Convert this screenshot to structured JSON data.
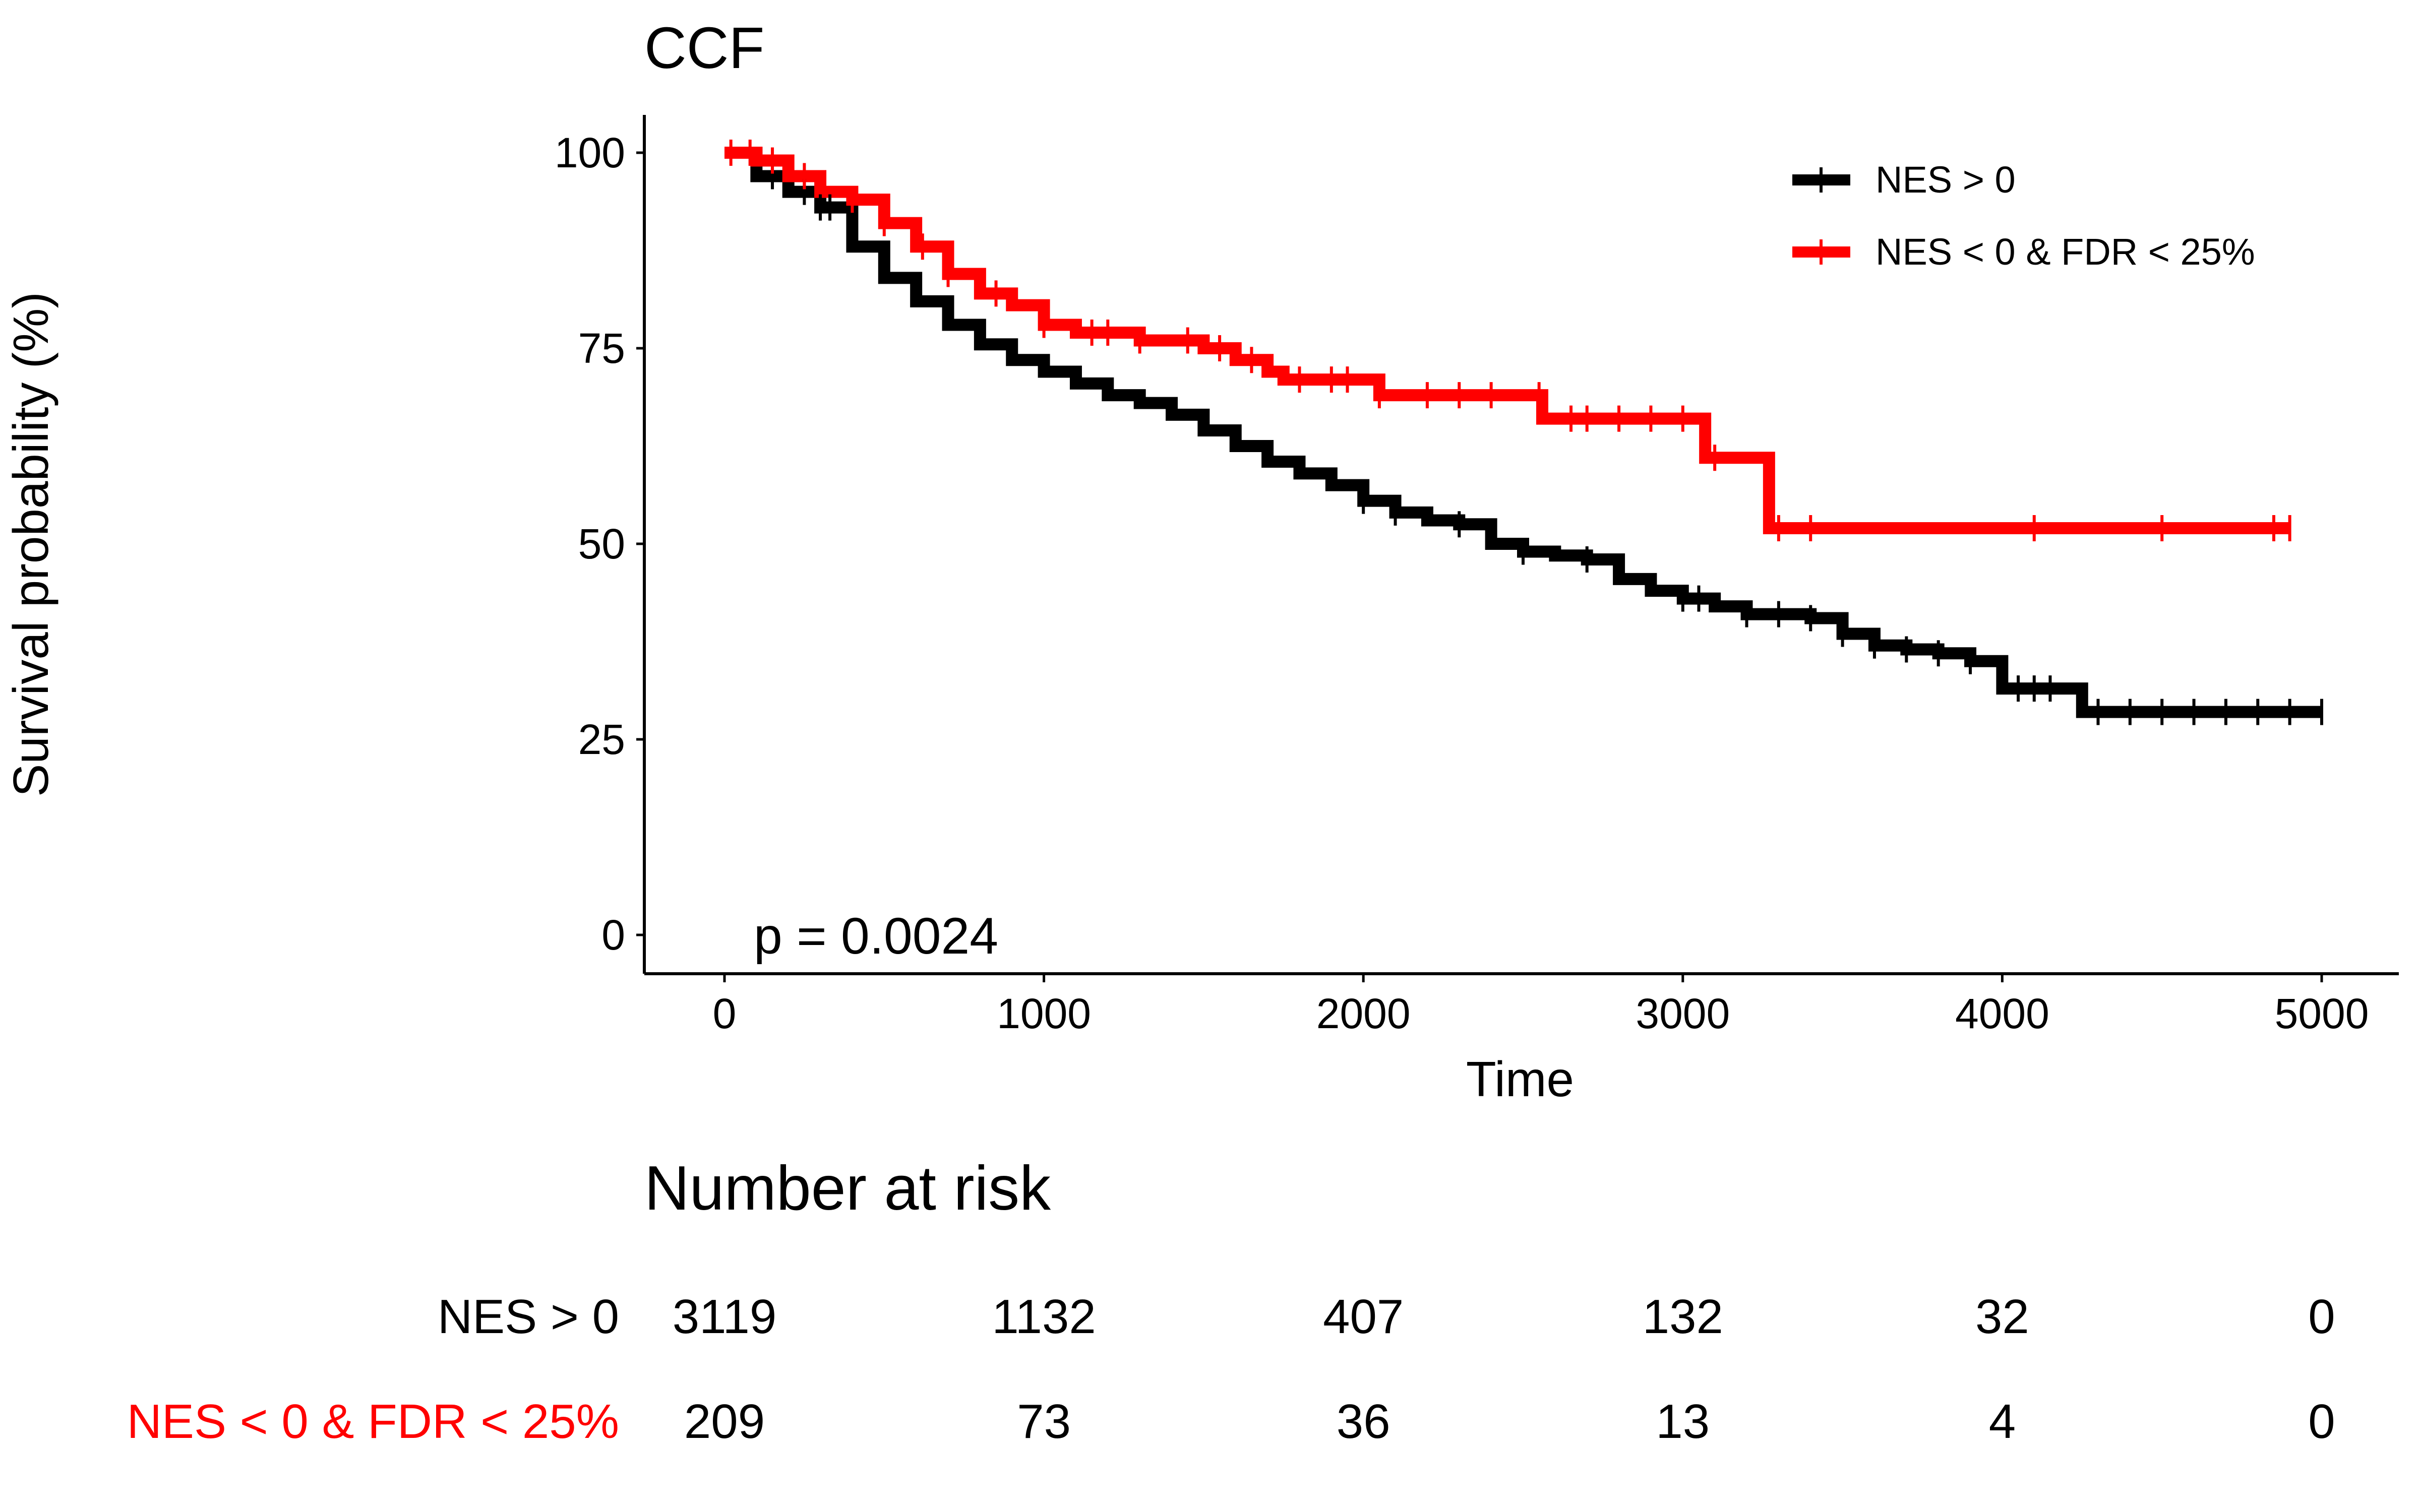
{
  "chart_data": {
    "type": "line",
    "subtype": "kaplan-meier",
    "title": "CCF",
    "xlabel": "Time",
    "ylabel": "Survival probability (%)",
    "xlim": [
      0,
      5000
    ],
    "ylim": [
      0,
      100
    ],
    "x_ticks": [
      "0",
      "1000",
      "2000",
      "3000",
      "4000",
      "5000"
    ],
    "y_ticks": [
      "0",
      "25",
      "50",
      "75",
      "100"
    ],
    "grid": false,
    "legend_position": "top-right",
    "pvalue_text": "p = 0.0024",
    "series": [
      {
        "name": "NES > 0",
        "color": "#000000",
        "points": [
          [
            0,
            100
          ],
          [
            100,
            97
          ],
          [
            200,
            95
          ],
          [
            300,
            93
          ],
          [
            400,
            88
          ],
          [
            500,
            84
          ],
          [
            600,
            81
          ],
          [
            700,
            78
          ],
          [
            800,
            75.5
          ],
          [
            900,
            73.5
          ],
          [
            1000,
            72
          ],
          [
            1100,
            70.5
          ],
          [
            1200,
            69
          ],
          [
            1300,
            68
          ],
          [
            1400,
            66.5
          ],
          [
            1500,
            64.5
          ],
          [
            1600,
            62.5
          ],
          [
            1700,
            60.5
          ],
          [
            1800,
            59
          ],
          [
            1900,
            57.5
          ],
          [
            2000,
            55.5
          ],
          [
            2100,
            54
          ],
          [
            2200,
            53
          ],
          [
            2300,
            52.5
          ],
          [
            2400,
            50
          ],
          [
            2500,
            49
          ],
          [
            2600,
            48.5
          ],
          [
            2700,
            48
          ],
          [
            2800,
            45.5
          ],
          [
            2900,
            44
          ],
          [
            3000,
            43
          ],
          [
            3100,
            42
          ],
          [
            3200,
            41
          ],
          [
            3300,
            41
          ],
          [
            3400,
            40.5
          ],
          [
            3500,
            38.5
          ],
          [
            3600,
            37
          ],
          [
            3700,
            36.5
          ],
          [
            3800,
            36
          ],
          [
            3900,
            35
          ],
          [
            4000,
            31.5
          ],
          [
            4100,
            31.5
          ],
          [
            4200,
            31.5
          ],
          [
            4250,
            28.5
          ],
          [
            4400,
            28.5
          ],
          [
            4600,
            28.5
          ],
          [
            4800,
            28.5
          ],
          [
            5000,
            28.5
          ]
        ],
        "censor_x": [
          150,
          250,
          300,
          330,
          2000,
          2100,
          2300,
          2500,
          2700,
          3000,
          3050,
          3200,
          3300,
          3400,
          3500,
          3600,
          3700,
          3800,
          3900,
          4050,
          4100,
          4150,
          4300,
          4400,
          4500,
          4600,
          4700,
          4800,
          4900,
          5000
        ]
      },
      {
        "name": "NES < 0 & FDR < 25%",
        "color": "#ff0000",
        "points": [
          [
            0,
            100
          ],
          [
            100,
            99
          ],
          [
            200,
            97
          ],
          [
            300,
            95
          ],
          [
            400,
            94
          ],
          [
            500,
            91
          ],
          [
            600,
            88
          ],
          [
            700,
            84.5
          ],
          [
            800,
            82
          ],
          [
            900,
            80.5
          ],
          [
            1000,
            78
          ],
          [
            1100,
            77
          ],
          [
            1200,
            77
          ],
          [
            1300,
            76
          ],
          [
            1400,
            76
          ],
          [
            1500,
            75
          ],
          [
            1600,
            73.5
          ],
          [
            1700,
            72
          ],
          [
            1750,
            71
          ],
          [
            1900,
            71
          ],
          [
            2000,
            71
          ],
          [
            2050,
            69
          ],
          [
            2200,
            69
          ],
          [
            2400,
            69
          ],
          [
            2540,
            69
          ],
          [
            2560,
            66
          ],
          [
            2800,
            66
          ],
          [
            3000,
            66
          ],
          [
            3060,
            66
          ],
          [
            3070,
            61
          ],
          [
            3200,
            61
          ],
          [
            3260,
            61
          ],
          [
            3270,
            52
          ],
          [
            3500,
            52
          ],
          [
            3800,
            52
          ],
          [
            4100,
            52
          ],
          [
            4500,
            52
          ],
          [
            4900,
            52
          ]
        ],
        "censor_x": [
          20,
          80,
          150,
          250,
          400,
          500,
          620,
          700,
          850,
          1000,
          1150,
          1200,
          1300,
          1450,
          1550,
          1650,
          1800,
          1900,
          1950,
          2050,
          2200,
          2300,
          2400,
          2550,
          2650,
          2700,
          2800,
          2900,
          3000,
          3100,
          3300,
          3400,
          4100,
          4500,
          4850,
          4900
        ]
      }
    ],
    "risk_table": {
      "title": "Number at risk",
      "times": [
        0,
        1000,
        2000,
        3000,
        4000,
        5000
      ],
      "rows": [
        {
          "label": "NES > 0",
          "color": "#000000",
          "values": [
            "3119",
            "1132",
            "407",
            "132",
            "32",
            "0"
          ]
        },
        {
          "label": "NES < 0 & FDR < 25%",
          "color": "#ff0000",
          "values": [
            "209",
            "73",
            "36",
            "13",
            "4",
            "0"
          ]
        }
      ]
    }
  }
}
